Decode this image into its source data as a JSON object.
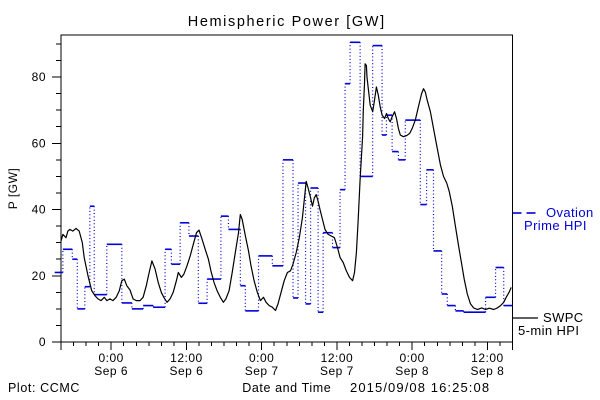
{
  "title": "Hemispheric Power [GW]",
  "colors": {
    "ovation": "#0000dd",
    "swpc": "#000000",
    "background": "#ffffff",
    "frame": "#000000"
  },
  "footer": {
    "plot_credit": "Plot: CCMC",
    "xlabel": "Date and Time",
    "timestamp": "2015/09/08 16:25:08"
  },
  "legend": {
    "ovation_lines": [
      "Ovation",
      "Prime HPI"
    ],
    "swpc_lines": [
      "SWPC",
      "5-min HPI"
    ]
  },
  "axes": {
    "ylabel": "P [GW]",
    "y_max": 92.7,
    "y_major_ticks": [
      {
        "v": 0,
        "label": "0"
      },
      {
        "v": 20,
        "label": "20"
      },
      {
        "v": 40,
        "label": "40"
      },
      {
        "v": 60,
        "label": "60"
      },
      {
        "v": 80,
        "label": "80"
      }
    ],
    "y_minor_step": 5,
    "y_minor_max": 90,
    "x_range_hours": 72,
    "x_start": "2015-09-05 16:00",
    "x_minor_step_hours": 2,
    "x_major_ticks": [
      {
        "t": 8,
        "time": "0:00",
        "date": "Sep 6"
      },
      {
        "t": 20,
        "time": "12:00",
        "date": "Sep 6"
      },
      {
        "t": 32,
        "time": "0:00",
        "date": "Sep 7"
      },
      {
        "t": 44,
        "time": "12:00",
        "date": "Sep 7"
      },
      {
        "t": 56,
        "time": "0:00",
        "date": "Sep 8"
      },
      {
        "t": 68,
        "time": "12:00",
        "date": "Sep 8"
      }
    ]
  },
  "chart_data": {
    "type": "line",
    "title": "Hemispheric Power [GW]",
    "xlabel": "Date and Time",
    "ylabel": "P [GW]",
    "ylim": [
      0,
      92.7
    ],
    "x_unit": "hours since 2015-09-05 16:00 UT",
    "grid": false,
    "legend_position": "right-outside",
    "series": [
      {
        "name": "SWPC 5-min HPI",
        "style": "solid",
        "color": "#000000",
        "points": [
          [
            0,
            30.5
          ],
          [
            0.3,
            32.5
          ],
          [
            0.8,
            31.5
          ],
          [
            1.1,
            33.5
          ],
          [
            1.4,
            34
          ],
          [
            1.9,
            33.5
          ],
          [
            2.4,
            34.3
          ],
          [
            2.9,
            33.5
          ],
          [
            3.4,
            30
          ],
          [
            3.7,
            25.5
          ],
          [
            4.3,
            20
          ],
          [
            4.9,
            15.5
          ],
          [
            5.4,
            14
          ],
          [
            5.9,
            13
          ],
          [
            6.4,
            12.5
          ],
          [
            6.9,
            13.5
          ],
          [
            7.3,
            12.5
          ],
          [
            7.8,
            13
          ],
          [
            8.3,
            12.5
          ],
          [
            8.8,
            13.5
          ],
          [
            9.3,
            15.5
          ],
          [
            9.7,
            18.5
          ],
          [
            10.1,
            19
          ],
          [
            10.5,
            17
          ],
          [
            11,
            15.7
          ],
          [
            11.5,
            13
          ],
          [
            12,
            12.5
          ],
          [
            12.6,
            12.5
          ],
          [
            13.1,
            13.5
          ],
          [
            13.6,
            17
          ],
          [
            14,
            20.5
          ],
          [
            14.5,
            24.5
          ],
          [
            15,
            22
          ],
          [
            15.5,
            18
          ],
          [
            16,
            15
          ],
          [
            16.4,
            13.5
          ],
          [
            16.9,
            12
          ],
          [
            17.4,
            13
          ],
          [
            17.9,
            15
          ],
          [
            18.4,
            18.5
          ],
          [
            18.7,
            21
          ],
          [
            19.2,
            19.5
          ],
          [
            19.6,
            20.5
          ],
          [
            20.1,
            23
          ],
          [
            20.6,
            26
          ],
          [
            21.1,
            29.5
          ],
          [
            21.6,
            33
          ],
          [
            22,
            33.8
          ],
          [
            22.5,
            31
          ],
          [
            23,
            28
          ],
          [
            23.5,
            25
          ],
          [
            23.9,
            21.5
          ],
          [
            24.4,
            18
          ],
          [
            24.9,
            15.5
          ],
          [
            25.4,
            13.5
          ],
          [
            25.9,
            12
          ],
          [
            26.3,
            13
          ],
          [
            26.8,
            15.5
          ],
          [
            27.3,
            21
          ],
          [
            27.8,
            27
          ],
          [
            28.3,
            33
          ],
          [
            28.6,
            38.5
          ],
          [
            28.9,
            37
          ],
          [
            29.4,
            32
          ],
          [
            29.9,
            27.5
          ],
          [
            30.3,
            23
          ],
          [
            30.8,
            18.5
          ],
          [
            31.3,
            15
          ],
          [
            31.8,
            12.5
          ],
          [
            32.3,
            13.5
          ],
          [
            32.7,
            12
          ],
          [
            33.2,
            11
          ],
          [
            33.7,
            10.5
          ],
          [
            34.2,
            9.5
          ],
          [
            34.6,
            11.5
          ],
          [
            35.1,
            15
          ],
          [
            35.6,
            18.5
          ],
          [
            36.1,
            21
          ],
          [
            36.6,
            21.5
          ],
          [
            37,
            23.5
          ],
          [
            37.5,
            27
          ],
          [
            38,
            31.5
          ],
          [
            38.5,
            37.5
          ],
          [
            38.8,
            43
          ],
          [
            39.1,
            48.5
          ],
          [
            39.4,
            46.5
          ],
          [
            39.8,
            43.5
          ],
          [
            40.1,
            41
          ],
          [
            40.4,
            43.5
          ],
          [
            40.7,
            44.5
          ],
          [
            41,
            42.5
          ],
          [
            41.3,
            40
          ],
          [
            41.7,
            37
          ],
          [
            42.1,
            34
          ],
          [
            42.6,
            32.5
          ],
          [
            43.1,
            32
          ],
          [
            43.6,
            31.5
          ],
          [
            44.1,
            28.5
          ],
          [
            44.5,
            25.5
          ],
          [
            45,
            24
          ],
          [
            45.5,
            21.5
          ],
          [
            46,
            19.5
          ],
          [
            46.5,
            18.5
          ],
          [
            46.8,
            21
          ],
          [
            47.1,
            27
          ],
          [
            47.4,
            37
          ],
          [
            47.7,
            49
          ],
          [
            48.1,
            62
          ],
          [
            48.2,
            70
          ],
          [
            48.4,
            78
          ],
          [
            48.5,
            84
          ],
          [
            48.7,
            83.5
          ],
          [
            48.8,
            80
          ],
          [
            49,
            76.5
          ],
          [
            49.3,
            71.5
          ],
          [
            49.7,
            69.5
          ],
          [
            50,
            73
          ],
          [
            50.3,
            77
          ],
          [
            50.6,
            74.5
          ],
          [
            50.9,
            71
          ],
          [
            51.2,
            68.5
          ],
          [
            51.6,
            67.5
          ],
          [
            51.9,
            69
          ],
          [
            52.2,
            67.5
          ],
          [
            52.5,
            66.5
          ],
          [
            52.8,
            68
          ],
          [
            53.2,
            69.5
          ],
          [
            53.5,
            67.5
          ],
          [
            53.8,
            64.5
          ],
          [
            54.1,
            62.5
          ],
          [
            54.6,
            62
          ],
          [
            55.1,
            62.3
          ],
          [
            55.6,
            63
          ],
          [
            56,
            64.5
          ],
          [
            56.5,
            67
          ],
          [
            57,
            71
          ],
          [
            57.5,
            75
          ],
          [
            57.8,
            76.5
          ],
          [
            58.1,
            75.5
          ],
          [
            58.4,
            73
          ],
          [
            58.9,
            69.5
          ],
          [
            59.4,
            64.5
          ],
          [
            59.9,
            59.5
          ],
          [
            60.5,
            53.5
          ],
          [
            61,
            50
          ],
          [
            61.5,
            48
          ],
          [
            61.9,
            45.5
          ],
          [
            62.4,
            41
          ],
          [
            62.9,
            35
          ],
          [
            63.4,
            29
          ],
          [
            63.9,
            23.5
          ],
          [
            64.3,
            19
          ],
          [
            64.8,
            14.5
          ],
          [
            65.3,
            11.5
          ],
          [
            65.8,
            10.3
          ],
          [
            66.4,
            9.8
          ],
          [
            67.1,
            10.3
          ],
          [
            67.7,
            9.8
          ],
          [
            68.3,
            10.2
          ],
          [
            69,
            9.8
          ],
          [
            69.6,
            10.3
          ],
          [
            70.1,
            11
          ],
          [
            70.6,
            12
          ],
          [
            71,
            13.5
          ],
          [
            71.5,
            15.2
          ],
          [
            71.8,
            16.5
          ]
        ]
      },
      {
        "name": "Ovation Prime HPI",
        "style": "step-dotted",
        "color": "#0000dd",
        "steps": [
          [
            -1.0,
            0.3,
            21
          ],
          [
            0.3,
            1.8,
            28
          ],
          [
            1.8,
            2.6,
            25
          ],
          [
            2.6,
            3.8,
            10
          ],
          [
            3.8,
            4.6,
            16.7
          ],
          [
            4.6,
            5.3,
            41
          ],
          [
            5.3,
            7.3,
            14.3
          ],
          [
            7.3,
            9.7,
            29.5
          ],
          [
            9.7,
            11.3,
            11.8
          ],
          [
            11.3,
            13.1,
            10
          ],
          [
            13.1,
            14.7,
            11
          ],
          [
            14.7,
            16.6,
            10.5
          ],
          [
            16.6,
            17.6,
            28
          ],
          [
            17.6,
            19.0,
            23.5
          ],
          [
            19.0,
            20.4,
            36
          ],
          [
            20.4,
            21.9,
            32
          ],
          [
            21.9,
            23.3,
            11.7
          ],
          [
            23.3,
            25.5,
            19
          ],
          [
            25.5,
            26.7,
            38
          ],
          [
            26.7,
            28.6,
            34
          ],
          [
            28.6,
            29.4,
            17
          ],
          [
            29.4,
            31.5,
            9.4
          ],
          [
            31.5,
            33.7,
            26
          ],
          [
            33.7,
            35.4,
            23
          ],
          [
            35.4,
            37.0,
            55
          ],
          [
            37.0,
            37.8,
            13.3
          ],
          [
            37.8,
            39.0,
            48
          ],
          [
            39.0,
            39.8,
            11.5
          ],
          [
            39.8,
            41.0,
            46.5
          ],
          [
            41.0,
            41.8,
            9
          ],
          [
            41.8,
            43.3,
            33
          ],
          [
            43.3,
            44.5,
            28.5
          ],
          [
            44.5,
            45.3,
            46
          ],
          [
            45.3,
            46.1,
            78
          ],
          [
            46.1,
            47.7,
            90.5
          ],
          [
            47.7,
            49.7,
            50
          ],
          [
            49.7,
            51.2,
            89.5
          ],
          [
            51.2,
            51.9,
            62.5
          ],
          [
            51.9,
            52.8,
            68.5
          ],
          [
            52.8,
            53.8,
            57.5
          ],
          [
            53.8,
            54.9,
            55
          ],
          [
            54.9,
            57.3,
            67
          ],
          [
            57.3,
            58.3,
            41.5
          ],
          [
            58.3,
            59.4,
            52
          ],
          [
            59.4,
            60.7,
            27.5
          ],
          [
            60.7,
            61.6,
            14.5
          ],
          [
            61.6,
            62.9,
            11
          ],
          [
            62.9,
            64.2,
            9.4
          ],
          [
            64.2,
            67.7,
            9
          ],
          [
            67.7,
            69.3,
            13.5
          ],
          [
            69.3,
            70.6,
            22.5
          ],
          [
            70.6,
            72,
            11
          ]
        ]
      }
    ]
  }
}
